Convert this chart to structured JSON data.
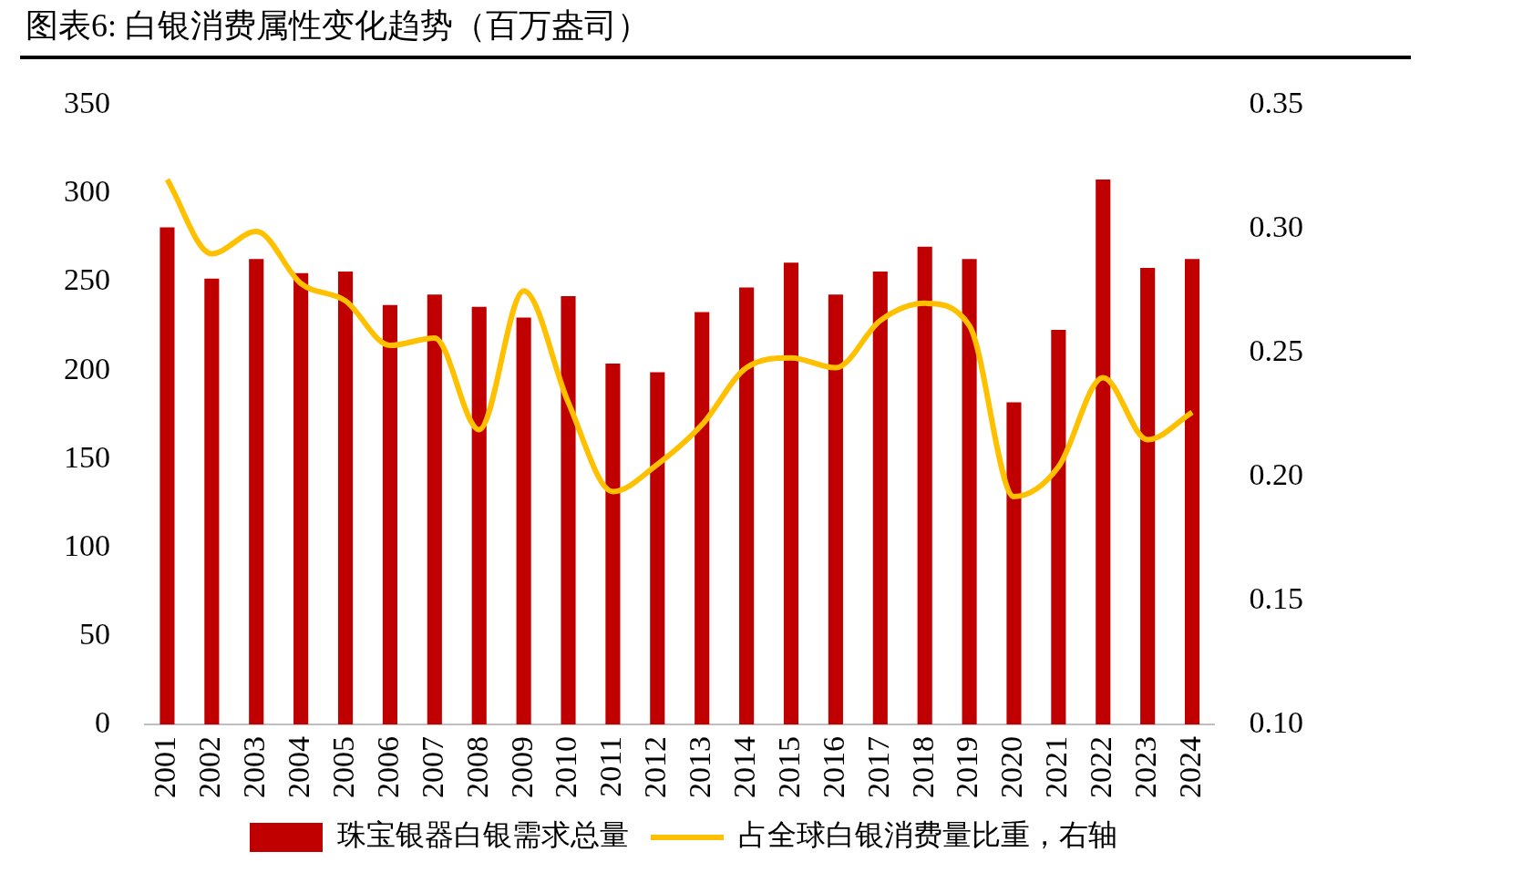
{
  "chart_data": {
    "type": "bar",
    "title": "图表6: 白银消费属性变化趋势（百万盎司）",
    "categories": [
      "2001",
      "2002",
      "2003",
      "2004",
      "2005",
      "2006",
      "2007",
      "2008",
      "2009",
      "2010",
      "2011",
      "2012",
      "2013",
      "2014",
      "2015",
      "2016",
      "2017",
      "2018",
      "2019",
      "2020",
      "2021",
      "2022",
      "2023",
      "2024"
    ],
    "series": [
      {
        "name": "珠宝银器白银需求总量",
        "color": "#c00000",
        "values": [
          281,
          252,
          263,
          255,
          256,
          237,
          243,
          236,
          230,
          242,
          204,
          199,
          233,
          247,
          261,
          243,
          256,
          270,
          263,
          182,
          223,
          308,
          258,
          263
        ]
      },
      {
        "name": "占全球白银消费量比重，右轴",
        "type": "line",
        "axis": "y2",
        "color": "#ffc000",
        "values": [
          0.32,
          0.29,
          0.299,
          0.278,
          0.271,
          0.253,
          0.256,
          0.219,
          0.275,
          0.23,
          0.194,
          0.205,
          0.221,
          0.244,
          0.248,
          0.244,
          0.263,
          0.27,
          0.261,
          0.192,
          0.204,
          0.24,
          0.215,
          0.226
        ]
      }
    ],
    "ylim": [
      0,
      350
    ],
    "yticks": [
      0,
      50,
      100,
      150,
      200,
      250,
      300,
      350
    ],
    "y2lim": [
      0.1,
      0.35
    ],
    "y2ticks": [
      {
        "value": 0.1,
        "label": "0.10"
      },
      {
        "value": 0.15,
        "label": "0.15"
      },
      {
        "value": 0.2,
        "label": "0.20"
      },
      {
        "value": 0.25,
        "label": "0.25"
      },
      {
        "value": 0.3,
        "label": "0.30"
      },
      {
        "value": 0.35,
        "label": "0.35"
      }
    ],
    "grid": false,
    "legend": "bottom",
    "marker": "none",
    "line_style": "solid"
  }
}
